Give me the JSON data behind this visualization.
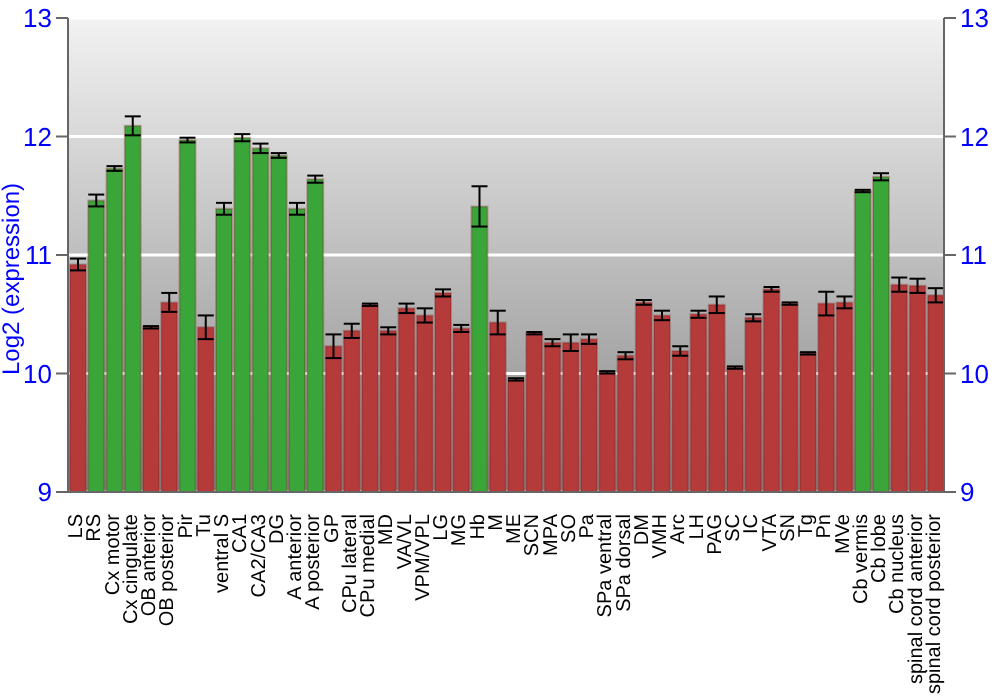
{
  "chart_data": {
    "type": "bar",
    "ylabel": "Log2 (expression)",
    "categories": [
      "LS",
      "RS",
      "Cx motor",
      "Cx cingulate",
      "OB anterior",
      "OB posterior",
      "Pir",
      "Tu",
      "ventral S",
      "CA1",
      "CA2/CA3",
      "DG",
      "A anterior",
      "A posterior",
      "GP",
      "CPu lateral",
      "CPu medial",
      "MD",
      "VA/VL",
      "VPM/VPL",
      "LG",
      "MG",
      "Hb",
      "M",
      "ME",
      "SCN",
      "MPA",
      "SO",
      "Pa",
      "SPa ventral",
      "SPa dorsal",
      "DM",
      "VMH",
      "Arc",
      "LH",
      "PAG",
      "SC",
      "IC",
      "VTA",
      "SN",
      "Tg",
      "Pn",
      "MVe",
      "Cb vermis",
      "Cb lobe",
      "Cb nucleus",
      "spinal cord anterior",
      "spinal cord posterior"
    ],
    "values": [
      10.92,
      11.46,
      11.73,
      12.09,
      10.39,
      10.6,
      11.97,
      10.39,
      11.39,
      11.99,
      11.9,
      11.84,
      11.39,
      11.64,
      10.23,
      10.36,
      10.58,
      10.36,
      10.55,
      10.49,
      10.68,
      10.38,
      11.41,
      10.43,
      9.95,
      10.34,
      10.26,
      10.26,
      10.29,
      10.01,
      10.15,
      10.6,
      10.49,
      10.19,
      10.5,
      10.58,
      10.05,
      10.47,
      10.71,
      10.59,
      10.17,
      10.59,
      10.6,
      11.54,
      11.66,
      10.75,
      10.74,
      10.66
    ],
    "errors": [
      0.05,
      0.05,
      0.02,
      0.08,
      0.01,
      0.08,
      0.02,
      0.1,
      0.05,
      0.03,
      0.04,
      0.02,
      0.05,
      0.03,
      0.1,
      0.06,
      0.01,
      0.03,
      0.04,
      0.06,
      0.03,
      0.03,
      0.17,
      0.1,
      0.01,
      0.01,
      0.03,
      0.07,
      0.04,
      0.01,
      0.03,
      0.02,
      0.04,
      0.04,
      0.03,
      0.07,
      0.01,
      0.03,
      0.02,
      0.01,
      0.01,
      0.1,
      0.05,
      0.01,
      0.03,
      0.06,
      0.06,
      0.06
    ],
    "colors": [
      "#b53a3a",
      "#3aa63a",
      "#3aa63a",
      "#3aa63a",
      "#b53a3a",
      "#b53a3a",
      "#3aa63a",
      "#b53a3a",
      "#3aa63a",
      "#3aa63a",
      "#3aa63a",
      "#3aa63a",
      "#3aa63a",
      "#3aa63a",
      "#b53a3a",
      "#b53a3a",
      "#b53a3a",
      "#b53a3a",
      "#b53a3a",
      "#b53a3a",
      "#b53a3a",
      "#b53a3a",
      "#3aa63a",
      "#b53a3a",
      "#b53a3a",
      "#b53a3a",
      "#b53a3a",
      "#b53a3a",
      "#b53a3a",
      "#b53a3a",
      "#b53a3a",
      "#b53a3a",
      "#b53a3a",
      "#b53a3a",
      "#b53a3a",
      "#b53a3a",
      "#b53a3a",
      "#b53a3a",
      "#b53a3a",
      "#b53a3a",
      "#b53a3a",
      "#b53a3a",
      "#b53a3a",
      "#3aa63a",
      "#3aa63a",
      "#b53a3a",
      "#b53a3a",
      "#b53a3a"
    ],
    "ylim": [
      9,
      13
    ],
    "yticks": [
      9,
      10,
      11,
      12,
      13
    ],
    "y2lim": [
      9,
      13
    ],
    "y2ticks": [
      9,
      10,
      11,
      12,
      13
    ],
    "grid": "y"
  }
}
